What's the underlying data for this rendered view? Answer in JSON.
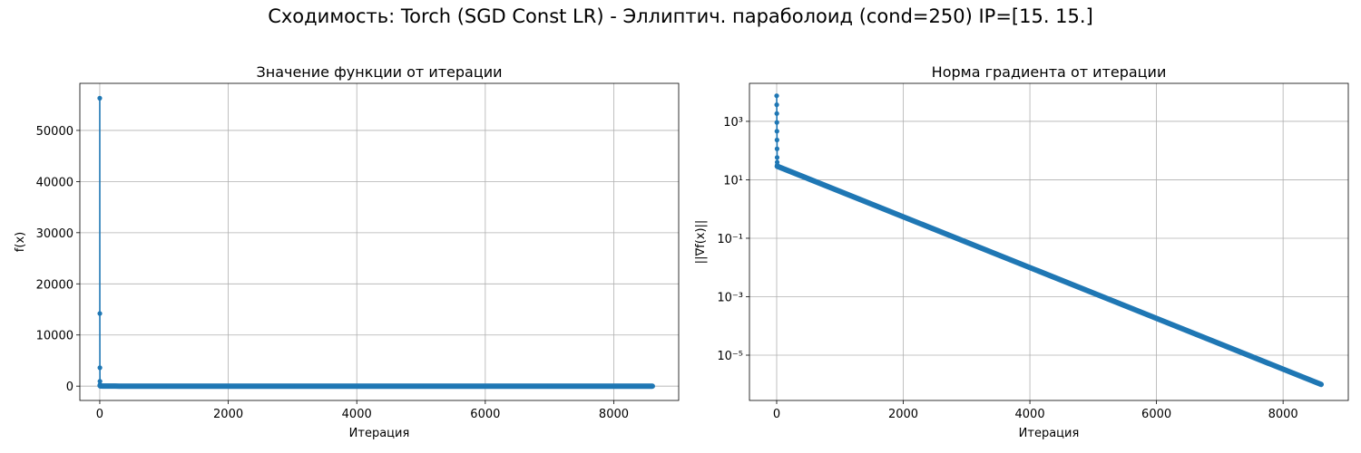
{
  "suptitle": "Сходимость: Torch (SGD Const LR) - Эллиптич. параболоид (cond=250) IP=[15. 15.]",
  "colors": {
    "series": "#1f77b4",
    "grid": "#b0b0b0",
    "axes": "#000000"
  },
  "chart_data": [
    {
      "type": "line",
      "title": "Значение функции от итерации",
      "xlabel": "Итерация",
      "ylabel": "f(x)",
      "xlim": [
        -310,
        9010
      ],
      "ylim": [
        -2800,
        59200
      ],
      "xticks": [
        0,
        2000,
        4000,
        6000,
        8000
      ],
      "xtick_labels": [
        "0",
        "2000",
        "4000",
        "6000",
        "8000"
      ],
      "yticks": [
        0,
        10000,
        20000,
        30000,
        40000,
        50000
      ],
      "ytick_labels": [
        "0",
        "10000",
        "20000",
        "30000",
        "40000",
        "50000"
      ],
      "yscale": "linear",
      "grid": true,
      "marker": "circle",
      "series": [
        {
          "x": [
            0,
            1,
            2,
            3,
            4,
            5,
            10,
            50,
            100,
            200,
            300,
            1000,
            2000,
            3000,
            4000,
            5000,
            6000,
            7000,
            8000,
            8600
          ],
          "y": [
            56300,
            14200,
            3600,
            950,
            280,
            100,
            40,
            20,
            10,
            3,
            1,
            0.1,
            0.01,
            0.001,
            0.0001,
            1e-05,
            1e-06,
            1e-07,
            1e-08,
            1e-09
          ]
        }
      ]
    },
    {
      "type": "line",
      "title": "Норма градиента от итерации",
      "xlabel": "Итерация",
      "ylabel": "||∇f(x)||",
      "xlim": [
        -430,
        9030
      ],
      "ylim_log10": [
        -6.55,
        4.3
      ],
      "xticks": [
        0,
        2000,
        4000,
        6000,
        8000
      ],
      "xtick_labels": [
        "0",
        "2000",
        "4000",
        "6000",
        "8000"
      ],
      "yticks_log10": [
        3,
        1,
        -1,
        -3,
        -5
      ],
      "ytick_labels": [
        "10³",
        "10¹",
        "10⁻¹",
        "10⁻³",
        "10⁻⁵"
      ],
      "yscale": "log",
      "grid": true,
      "marker": "circle",
      "series": [
        {
          "x": [
            0,
            1,
            2,
            3,
            4,
            5,
            6,
            7,
            8,
            9,
            10,
            8600
          ],
          "y": [
            7500,
            3700,
            1850,
            920,
            460,
            230,
            115,
            58,
            40,
            32,
            29,
            1e-06
          ]
        }
      ]
    }
  ]
}
